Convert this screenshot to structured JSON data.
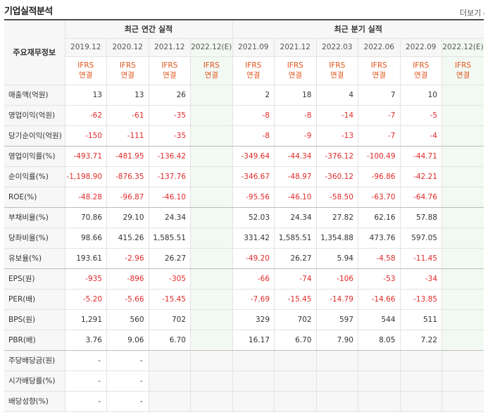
{
  "title": "기업실적분석",
  "more_label": "더보기",
  "header": {
    "row_label": "주요재무정보",
    "annual_group": "최근 연간 실적",
    "quarter_group": "최근 분기 실적",
    "annual_dates": [
      "2019.12",
      "2020.12",
      "2021.12",
      "2022.12(E)"
    ],
    "quarter_dates": [
      "2021.09",
      "2021.12",
      "2022.03",
      "2022.06",
      "2022.09",
      "2022.12(E)"
    ],
    "ifrs_line1": "IFRS",
    "ifrs_line2": "연결"
  },
  "rows": [
    {
      "label": "매출액(억원)",
      "annual": [
        "13",
        "13",
        "26",
        ""
      ],
      "quarter": [
        "2",
        "18",
        "4",
        "7",
        "10",
        ""
      ],
      "empty": false
    },
    {
      "label": "영업이익(억원)",
      "annual": [
        "-62",
        "-61",
        "-35",
        ""
      ],
      "quarter": [
        "-8",
        "-8",
        "-14",
        "-7",
        "-5",
        ""
      ],
      "empty": false
    },
    {
      "label": "당기순이익(억원)",
      "annual": [
        "-150",
        "-111",
        "-35",
        ""
      ],
      "quarter": [
        "-8",
        "-9",
        "-13",
        "-7",
        "-4",
        ""
      ],
      "empty": false,
      "group_end": true
    },
    {
      "label": "영업이익률(%)",
      "annual": [
        "-493.71",
        "-481.95",
        "-136.42",
        ""
      ],
      "quarter": [
        "-349.64",
        "-44.34",
        "-376.12",
        "-100.49",
        "-44.71",
        ""
      ],
      "empty": false
    },
    {
      "label": "순이익률(%)",
      "annual": [
        "-1,198.90",
        "-876.35",
        "-137.76",
        ""
      ],
      "quarter": [
        "-346.67",
        "-48.97",
        "-360.12",
        "-96.86",
        "-42.21",
        ""
      ],
      "empty": false
    },
    {
      "label": "ROE(%)",
      "annual": [
        "-48.28",
        "-96.87",
        "-46.10",
        ""
      ],
      "quarter": [
        "-95.56",
        "-46.10",
        "-58.50",
        "-63.70",
        "-64.76",
        ""
      ],
      "empty": false,
      "group_end": true
    },
    {
      "label": "부채비율(%)",
      "annual": [
        "70.86",
        "29.10",
        "24.34",
        ""
      ],
      "quarter": [
        "52.03",
        "24.34",
        "27.82",
        "62.16",
        "57.88",
        ""
      ],
      "empty": false
    },
    {
      "label": "당좌비율(%)",
      "annual": [
        "98.66",
        "415.26",
        "1,585.51",
        ""
      ],
      "quarter": [
        "331.42",
        "1,585.51",
        "1,354.88",
        "473.76",
        "597.05",
        ""
      ],
      "empty": false
    },
    {
      "label": "유보율(%)",
      "annual": [
        "193.61",
        "-2.96",
        "26.27",
        ""
      ],
      "quarter": [
        "-49.20",
        "26.27",
        "5.94",
        "-4.58",
        "-11.45",
        ""
      ],
      "empty": false,
      "group_end": true
    },
    {
      "label": "EPS(원)",
      "annual": [
        "-935",
        "-896",
        "-305",
        ""
      ],
      "quarter": [
        "-66",
        "-74",
        "-106",
        "-53",
        "-34",
        ""
      ],
      "empty": false
    },
    {
      "label": "PER(배)",
      "annual": [
        "-5.20",
        "-5.66",
        "-15.45",
        ""
      ],
      "quarter": [
        "-7.69",
        "-15.45",
        "-14.79",
        "-14.66",
        "-13.85",
        ""
      ],
      "empty": false
    },
    {
      "label": "BPS(원)",
      "annual": [
        "1,291",
        "560",
        "702",
        ""
      ],
      "quarter": [
        "329",
        "702",
        "597",
        "544",
        "511",
        ""
      ],
      "empty": false
    },
    {
      "label": "PBR(배)",
      "annual": [
        "3.76",
        "9.06",
        "6.70",
        ""
      ],
      "quarter": [
        "16.17",
        "6.70",
        "7.90",
        "8.05",
        "7.22",
        ""
      ],
      "empty": false,
      "group_end": true
    },
    {
      "label": "주당배당금(원)",
      "annual": [
        "-",
        "-",
        "",
        ""
      ],
      "quarter": [
        "",
        "",
        "",
        "",
        "",
        ""
      ],
      "empty": true
    },
    {
      "label": "시가배당률(%)",
      "annual": [
        "-",
        "-",
        "",
        ""
      ],
      "quarter": [
        "",
        "",
        "",
        "",
        "",
        ""
      ],
      "empty": true
    },
    {
      "label": "배당성향(%)",
      "annual": [
        "-",
        "-",
        "",
        ""
      ],
      "quarter": [
        "",
        "",
        "",
        "",
        "",
        ""
      ],
      "empty": true
    }
  ],
  "colors": {
    "negative": "#e02a2a",
    "ifrs": "#e0541c",
    "estimate_bg": "#f2f9f2"
  }
}
